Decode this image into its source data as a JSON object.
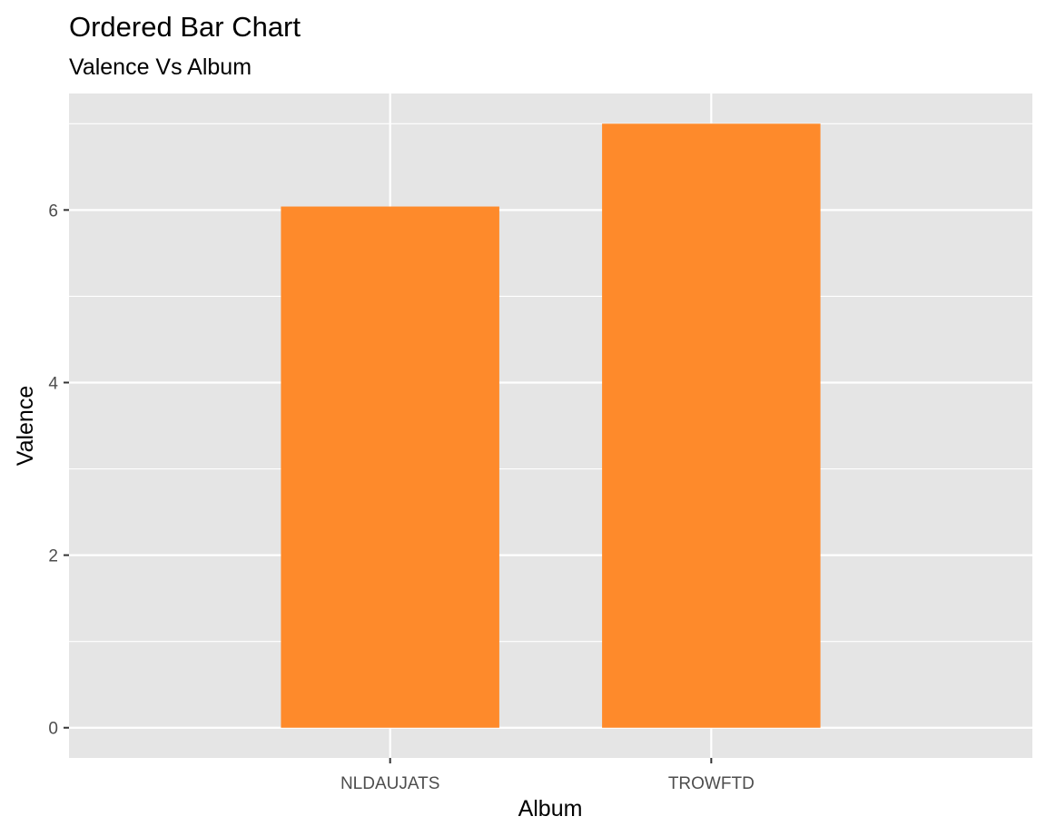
{
  "colors": {
    "panel_background": "#e5e5e5",
    "grid": "#ffffff",
    "bar_fill": "#fe8a2b",
    "tick_text": "#4d4d4d",
    "tick_mark": "#333333"
  },
  "chart_data": {
    "type": "bar",
    "title": "Ordered Bar Chart",
    "subtitle": "Valence Vs Album",
    "xlabel": "Album",
    "ylabel": "Valence",
    "categories": [
      "NLDAUJATS",
      "TROWFTD"
    ],
    "values": [
      6.04,
      7.0
    ],
    "ylim": [
      -0.35,
      7.35
    ],
    "yticks": [
      0,
      2,
      4,
      6
    ],
    "ytick_labels": [
      "0",
      "2",
      "4",
      "6"
    ],
    "grid": true,
    "legend": "none"
  }
}
